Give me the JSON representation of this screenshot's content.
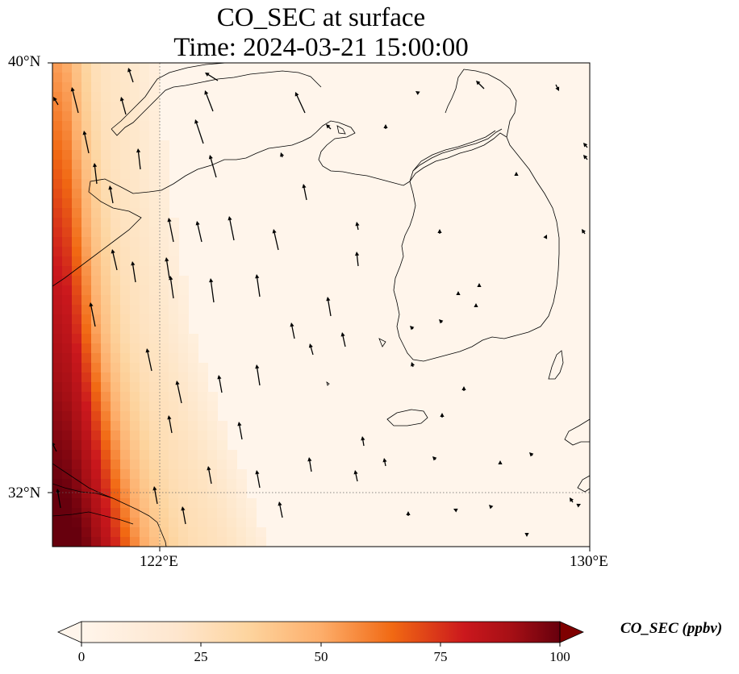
{
  "title": {
    "line1": "CO_SEC at surface",
    "line2": "Time: 2024-03-21 15:00:00"
  },
  "axes": {
    "lat_labels": [
      "40°N",
      "32°N"
    ],
    "lon_labels": [
      "122°E",
      "130°E"
    ],
    "lat_range": [
      31,
      40
    ],
    "lon_range": [
      120,
      130
    ],
    "gridlines": {
      "lat": [
        32
      ],
      "lon": [
        122
      ],
      "style": "dotted"
    }
  },
  "colorbar": {
    "label": "CO_SEC (ppbv)",
    "ticks": [
      "0",
      "25",
      "50",
      "75",
      "100"
    ],
    "range": [
      0,
      100
    ],
    "extend": "both",
    "colormap": [
      "#fff5eb",
      "#fdd49e",
      "#fdae6b",
      "#f16913",
      "#cb181d",
      "#a50f15",
      "#67000d"
    ]
  },
  "field_description": "plume",
  "colors": {
    "background": "#fff5eb",
    "low": "#fff5eb",
    "high": "#7f0000",
    "coast": "#000000"
  }
}
